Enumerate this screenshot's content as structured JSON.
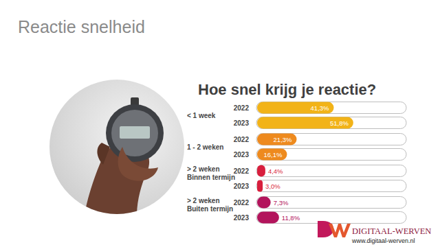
{
  "page": {
    "title": "Reactie snelheid",
    "logo_text": "DIGITAAL-WERVEN",
    "url": "www.digitaal-werven.nl"
  },
  "chart_data": {
    "type": "bar",
    "orientation": "horizontal",
    "title": "Hoe snel krijg je reactie?",
    "categories": [
      "< 1 week",
      "1 - 2 weken",
      "> 2 weken\nBinnen termijn",
      "> 2 weken\nBuiten termijn"
    ],
    "series": [
      {
        "name": "2022",
        "values": [
          41.3,
          21.3,
          4.4,
          7.3
        ],
        "value_labels": [
          "41,3%",
          "21,3%",
          "4,4%",
          "7,3%"
        ],
        "colors": [
          "#f2b318",
          "#ee8a1e",
          "#d81f3d",
          "#b3145c"
        ]
      },
      {
        "name": "2023",
        "values": [
          51.8,
          16.1,
          3.0,
          11.8
        ],
        "value_labels": [
          "51,8%",
          "16,1%",
          "3,0%",
          "11,8%"
        ],
        "colors": [
          "#f2b318",
          "#ee8a1e",
          "#d81f3d",
          "#b3145c"
        ]
      }
    ],
    "xlim": [
      0,
      80
    ],
    "data_labels": true,
    "tick_labels": false,
    "grid": false
  }
}
